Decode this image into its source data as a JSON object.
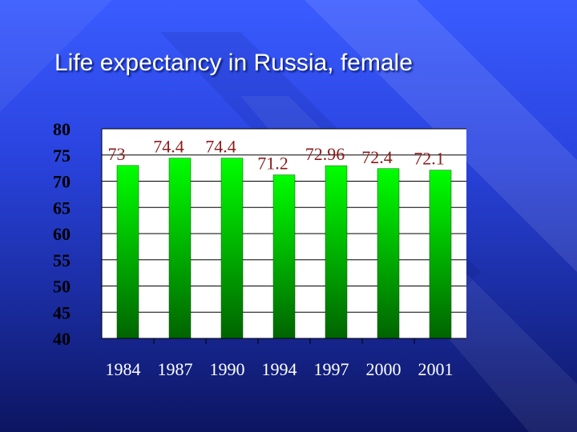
{
  "slide": {
    "title": "Life expectancy in Russia, female"
  },
  "chart_data": {
    "type": "bar",
    "title": "Life expectancy in Russia, female",
    "xlabel": "",
    "ylabel": "",
    "categories": [
      "1984",
      "1987",
      "1990",
      "1994",
      "1997",
      "2000",
      "2001"
    ],
    "values": [
      73,
      74.4,
      74.4,
      71.2,
      72.96,
      72.4,
      72.1
    ],
    "data_labels": [
      "73",
      "74.4",
      "74.4",
      "71.2",
      "72.96",
      "72.4",
      "72.1"
    ],
    "ylim": [
      40,
      80
    ],
    "yticks": [
      80,
      75,
      70,
      65,
      60,
      55,
      50,
      45,
      40
    ],
    "grid": true,
    "legend": "none",
    "colors": {
      "plot_background": "#ffffff",
      "bar_top": "#00ff00",
      "bar_bottom": "#006400",
      "data_label": "#8b1a1a",
      "gridline": "#000000"
    }
  }
}
